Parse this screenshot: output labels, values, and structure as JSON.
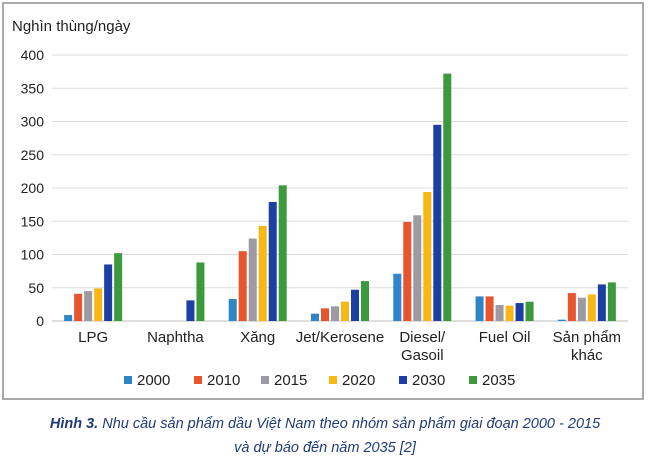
{
  "chart_data": {
    "type": "bar",
    "ylabel": "Nghìn thùng/ngày",
    "ylim": [
      0,
      400
    ],
    "yticks": [
      0,
      50,
      100,
      150,
      200,
      250,
      300,
      350,
      400
    ],
    "grid": true,
    "legend_position": "bottom",
    "categories": [
      "LPG",
      "Naphtha",
      "Xăng",
      "Jet/Kerosene",
      "Diesel/ Gasoil",
      "Fuel Oil",
      "Sản phẩm khác"
    ],
    "series": [
      {
        "name": "2000",
        "color": "#2e86c8",
        "values": [
          9,
          0,
          33,
          11,
          71,
          37,
          2
        ]
      },
      {
        "name": "2010",
        "color": "#e8542c",
        "values": [
          41,
          0,
          105,
          19,
          149,
          37,
          42
        ]
      },
      {
        "name": "2015",
        "color": "#9d9aa3",
        "values": [
          45,
          0,
          124,
          22,
          159,
          24,
          35
        ]
      },
      {
        "name": "2020",
        "color": "#f9b716",
        "values": [
          49,
          0,
          143,
          29,
          194,
          23,
          40
        ]
      },
      {
        "name": "2030",
        "color": "#1b3fa2",
        "values": [
          85,
          31,
          179,
          47,
          295,
          27,
          55
        ]
      },
      {
        "name": "2035",
        "color": "#3d9a3c",
        "values": [
          102,
          88,
          204,
          60,
          372,
          29,
          58
        ]
      }
    ]
  },
  "caption": {
    "label": "Hình 3.",
    "line1": " Nhu cầu sản phẩm dầu Việt Nam theo nhóm sản phẩm giai đoạn 2000 - 2015",
    "line2": "và dự báo đến năm 2035 [2]"
  }
}
